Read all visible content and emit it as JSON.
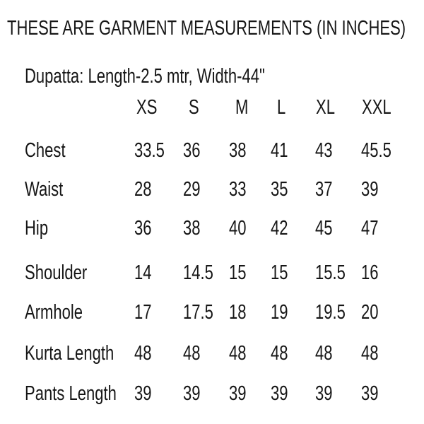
{
  "colors": {
    "background": "#ffffff",
    "text": "#161616"
  },
  "chart_data": {
    "type": "table",
    "title": "THESE ARE GARMENT MEASUREMENTS (IN INCHES)",
    "note": "Dupatta: Length-2.5 mtr, Width-44\"",
    "columns": [
      "XS",
      "S",
      "M",
      "L",
      "XL",
      "XXL"
    ],
    "rows": [
      {
        "label": "Chest",
        "values": [
          "33.5",
          "36",
          "38",
          "41",
          "43",
          "45.5"
        ]
      },
      {
        "label": "Waist",
        "values": [
          "28",
          "29",
          "33",
          "35",
          "37",
          "39"
        ]
      },
      {
        "label": "Hip",
        "values": [
          "36",
          "38",
          "40",
          "42",
          "45",
          "47"
        ]
      },
      {
        "label": "Shoulder",
        "values": [
          "14",
          "14.5",
          "15",
          "15",
          "15.5",
          "16"
        ]
      },
      {
        "label": "Armhole",
        "values": [
          "17",
          "17.5",
          "18",
          "19",
          "19.5",
          "20"
        ]
      },
      {
        "label": "Kurta Length",
        "values": [
          "48",
          "48",
          "48",
          "48",
          "48",
          "48"
        ]
      },
      {
        "label": "Pants Length",
        "values": [
          "39",
          "39",
          "39",
          "39",
          "39",
          "39"
        ]
      }
    ]
  }
}
